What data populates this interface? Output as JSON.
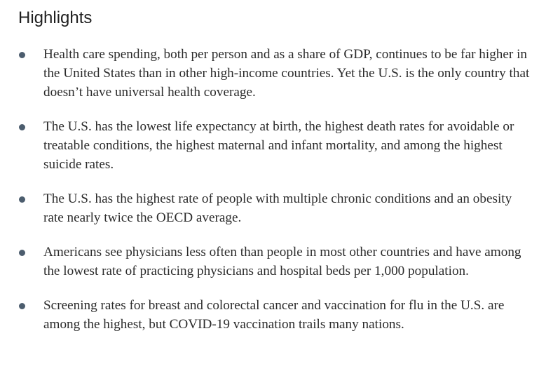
{
  "header": {
    "title": "Highlights"
  },
  "items": [
    "Health care spending, both per person and as a share of GDP, continues to be far higher in the United States than in other high-income countries. Yet the U.S. is the only country that doesn’t have universal health coverage.",
    "The U.S. has the lowest life expectancy at birth, the highest death rates for avoidable or treatable conditions, the highest maternal and infant mortality, and among the highest suicide rates.",
    "The U.S. has the highest rate of people with multiple chronic conditions and an obesity rate nearly twice the OECD average.",
    "Americans see physicians less often than people in most other countries and have among the lowest rate of practicing physicians and hospital beds per 1,000 population.",
    "Screening rates for breast and colorectal cancer and vaccination for flu in the U.S. are among the highest, but COVID-19 vaccination trails many nations."
  ]
}
